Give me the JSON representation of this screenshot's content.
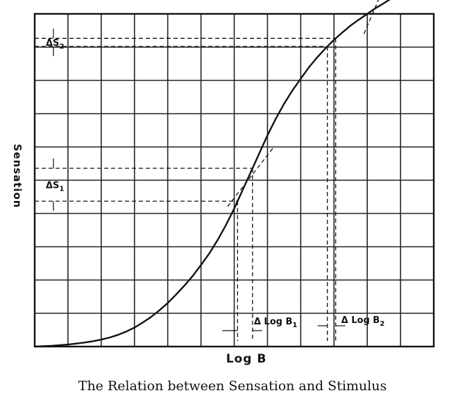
{
  "chart_data": {
    "type": "line",
    "title": "The Relation between Sensation and Stimulus",
    "xlabel": "Log B",
    "ylabel": "Sensation",
    "grid": true,
    "series": [
      {
        "x": [
          0,
          0.25,
          0.5,
          0.75,
          1.0,
          1.25,
          1.5,
          1.75,
          2.0,
          2.25,
          2.5,
          2.75,
          3.0,
          3.25,
          3.5,
          3.75,
          4.0,
          4.25,
          4.5,
          4.75,
          5.0,
          5.25,
          5.5,
          5.75,
          6.0,
          6.25,
          6.5,
          6.75,
          7.0,
          7.25,
          7.5,
          7.75,
          8.0,
          8.25,
          8.5,
          8.75,
          9.0,
          9.25,
          9.5,
          9.75,
          10.0,
          10.25,
          10.5,
          10.75,
          11.0,
          11.25
        ],
        "y": [
          0,
          0.01,
          0.02,
          0.04,
          0.06,
          0.09,
          0.12,
          0.16,
          0.21,
          0.27,
          0.35,
          0.45,
          0.57,
          0.72,
          0.89,
          1.09,
          1.31,
          1.56,
          1.83,
          2.12,
          2.45,
          2.8,
          3.2,
          3.65,
          4.15,
          4.7,
          5.25,
          5.8,
          6.35,
          6.85,
          7.3,
          7.7,
          8.05,
          8.4,
          8.7,
          8.97,
          9.22,
          9.44,
          9.65,
          9.83,
          10.0,
          10.17,
          10.32,
          10.48,
          10.62,
          10.78
        ]
      }
    ],
    "annotations": {
      "delta_s1": "ΔS",
      "delta_s1_sub": "1",
      "delta_s2": "ΔS",
      "delta_s2_sub": "2",
      "delta_log_b1": "Δ Log B",
      "delta_log_b1_sub": "1",
      "delta_log_b2": "Δ Log B",
      "delta_log_b2_sub": "2"
    }
  }
}
